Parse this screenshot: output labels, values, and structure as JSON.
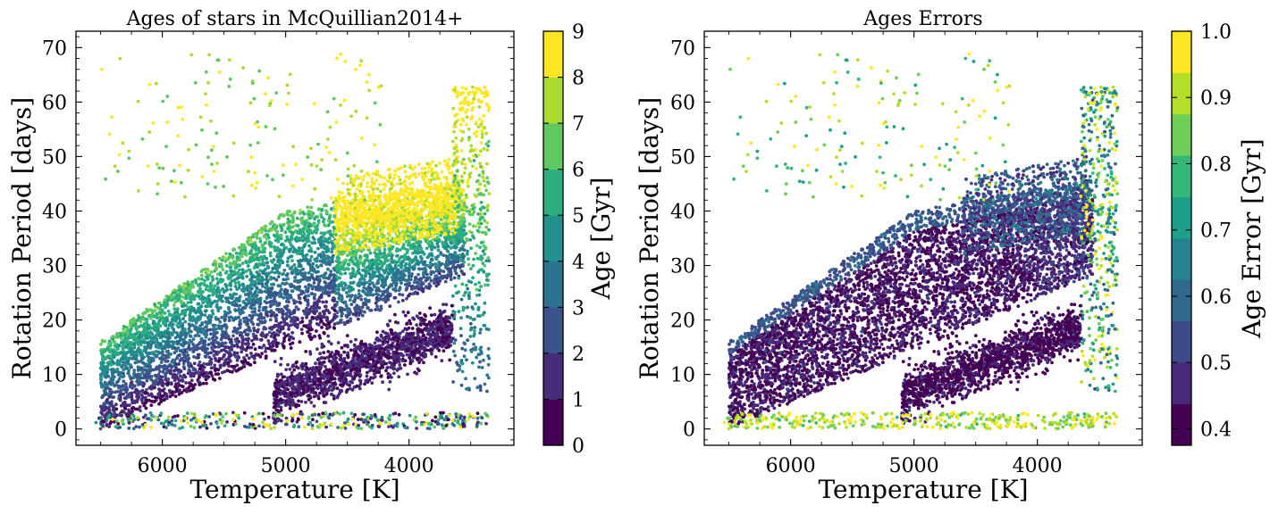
{
  "chart_data": [
    {
      "type": "scatter",
      "title": "Ages of stars in McQuillian2014+",
      "xlabel": "Temperature [K]",
      "ylabel": "Rotation Period [days]",
      "xlim": [
        6700,
        3150
      ],
      "ylim": [
        -3,
        73
      ],
      "x_inverted": true,
      "xticks": [
        "6000",
        "5000",
        "4000"
      ],
      "xtick_values": [
        6000,
        5000,
        4000
      ],
      "yticks": [
        "0",
        "10",
        "20",
        "30",
        "40",
        "50",
        "60",
        "70"
      ],
      "ytick_values": [
        0,
        10,
        20,
        30,
        40,
        50,
        60,
        70
      ],
      "colorbar": {
        "label": "Age [Gyr]",
        "min": 0,
        "max": 9,
        "levels": 9,
        "ticks": [
          "0",
          "1",
          "2",
          "3",
          "4",
          "5",
          "6",
          "7",
          "8",
          "9"
        ],
        "colormap": "viridis"
      },
      "distribution": [
        {
          "region": "main sequence band, hot end (6500-5500 K)",
          "rotation_period": [
            2,
            30
          ],
          "age_gyr": [
            1,
            5
          ]
        },
        {
          "region": "main sequence band, middle (5500-4500 K)",
          "rotation_period": [
            8,
            42
          ],
          "age_gyr": [
            2,
            7
          ]
        },
        {
          "region": "slow rotators, cool (4500-3700 K)",
          "rotation_period": [
            28,
            48
          ],
          "age_gyr": [
            7,
            9
          ]
        },
        {
          "region": "fast rotators, cool (5000-3600 K)",
          "rotation_period": [
            5,
            25
          ],
          "age_gyr": [
            0,
            2
          ]
        },
        {
          "region": "sparse old stars (6500-4500 K)",
          "rotation_period": [
            45,
            70
          ],
          "age_gyr": [
            6,
            9
          ]
        },
        {
          "region": "short-period floor (6700-3400 K)",
          "rotation_period": [
            0,
            3
          ],
          "age_gyr": [
            0,
            9
          ]
        }
      ],
      "grid": false
    },
    {
      "type": "scatter",
      "title": "Ages Errors",
      "xlabel": "Temperature [K]",
      "ylabel": "Rotation Period [days]",
      "xlim": [
        6700,
        3150
      ],
      "ylim": [
        -3,
        73
      ],
      "x_inverted": true,
      "xticks": [
        "6000",
        "5000",
        "4000"
      ],
      "xtick_values": [
        6000,
        5000,
        4000
      ],
      "yticks": [
        "0",
        "10",
        "20",
        "30",
        "40",
        "50",
        "60",
        "70"
      ],
      "ytick_values": [
        0,
        10,
        20,
        30,
        40,
        50,
        60,
        70
      ],
      "colorbar": {
        "label": "Age Error [Gyr]",
        "min": 0.375,
        "max": 1.0,
        "levels": 10,
        "ticks": [
          "0.4",
          "0.5",
          "0.6",
          "0.7",
          "0.8",
          "0.9",
          "1.0"
        ],
        "tick_values": [
          0.4,
          0.5,
          0.6,
          0.7,
          0.8,
          0.9,
          1.0
        ],
        "colormap": "viridis"
      },
      "distribution": [
        {
          "region": "main sequence band (6500-4000 K)",
          "rotation_period": [
            2,
            40
          ],
          "age_err_gyr": [
            0.375,
            0.5
          ]
        },
        {
          "region": "band edges",
          "rotation_period": [
            0,
            45
          ],
          "age_err_gyr": [
            0.5,
            0.7
          ]
        },
        {
          "region": "coolest stars (3500-3300 K)",
          "rotation_period": [
            0,
            65
          ],
          "age_err_gyr": [
            0.7,
            1.0
          ]
        },
        {
          "region": "sparse outliers and short-period floor",
          "rotation_period": [
            0,
            70
          ],
          "age_err_gyr": [
            0.8,
            1.0
          ]
        }
      ],
      "grid": false
    }
  ]
}
